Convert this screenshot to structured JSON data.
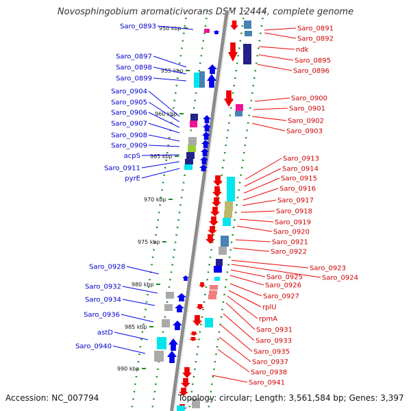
{
  "title": "Novosphingobium aromaticivorans DSM 12444, complete genome",
  "accession": "Accession: NC_007794",
  "summary": "Topology: circular; Length: 3,561,584 bp; Genes: 3,397",
  "scale_labels": [
    "950 kbp",
    "955 kbp",
    "960 kbp",
    "965 kbp",
    "970 kbp",
    "975 kbp",
    "980 kbp",
    "985 kbp",
    "990 kbp"
  ],
  "left_genes": [
    "Saro_0893",
    "Saro_0897",
    "Saro_0898",
    "Saro_0899",
    "Saro_0904",
    "Saro_0905",
    "Saro_0906",
    "Saro_0907",
    "Saro_0908",
    "Saro_0909",
    "acpS",
    "Saro_0911",
    "pyrE",
    "Saro_0928",
    "Saro_0932",
    "Saro_0934",
    "Saro_0936",
    "astD",
    "Saro_0940"
  ],
  "right_genes": [
    "Saro_0891",
    "Saro_0892",
    "ndk",
    "Saro_0895",
    "Saro_0896",
    "Saro_0900",
    "Saro_0901",
    "Saro_0902",
    "Saro_0903",
    "Saro_0913",
    "Saro_0914",
    "Saro_0915",
    "Saro_0916",
    "Saro_0917",
    "Saro_0918",
    "Saro_0919",
    "Saro_0920",
    "Saro_0921",
    "Saro_0922",
    "Saro_0923",
    "Saro_0924",
    "Saro_0925",
    "Saro_0926",
    "Saro_0927",
    "rplU",
    "rpmA",
    "Saro_0931",
    "Saro_0933",
    "Saro_0935",
    "Saro_0937",
    "Saro_0938",
    "Saro_0941"
  ],
  "colors": {
    "backbone": "#8c8c8c",
    "forward_strand": "#0000ee",
    "reverse_strand": "#ee0000",
    "scale_ticks": "#1a8c1a",
    "cyan": "#00e5ee",
    "steelblue": "#4682b4",
    "navy": "#222288",
    "magenta": "#ee1493",
    "grey": "#aaaaaa",
    "khaki": "#bdb76b",
    "lime": "#9acd32",
    "salmon": "#f08080"
  }
}
